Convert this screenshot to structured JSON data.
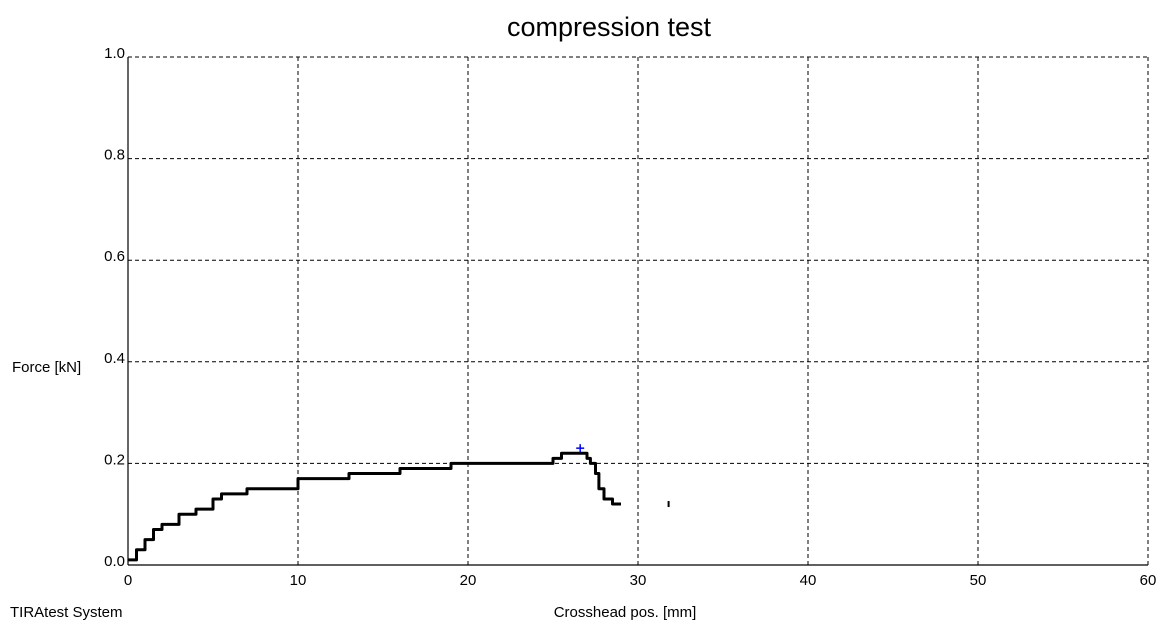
{
  "footer": {
    "system_label": "TIRAtest System"
  },
  "colors": {
    "series": "#000000",
    "marker": "#0000ff",
    "grid": "#000000"
  },
  "chart_data": {
    "type": "line",
    "title": "compression test",
    "xlabel": "Crosshead pos. [mm]",
    "ylabel": "Force [kN]",
    "xlim": [
      0,
      60
    ],
    "ylim": [
      0.0,
      1.0
    ],
    "xticks": [
      0,
      10,
      20,
      30,
      40,
      50,
      60
    ],
    "yticks": [
      0.0,
      0.2,
      0.4,
      0.6,
      0.8,
      1.0
    ],
    "xtick_labels": [
      "0",
      "10",
      "20",
      "30",
      "40",
      "50",
      "60"
    ],
    "ytick_labels": [
      "0.0",
      "0.2",
      "0.4",
      "0.6",
      "0.8",
      "1.0"
    ],
    "grid": true,
    "grid_style": "dashed",
    "series": [
      {
        "x": [
          0,
          0.5,
          1,
          1.5,
          2,
          3,
          4,
          5,
          5.5,
          6,
          7,
          8,
          9,
          10,
          11,
          12,
          13,
          14,
          15,
          16,
          17,
          18,
          19,
          20,
          21,
          22,
          23,
          24,
          25,
          25.5,
          26,
          26.5,
          27,
          27.2,
          27.5,
          27.7,
          28,
          28.5,
          29
        ],
        "y": [
          0.01,
          0.03,
          0.05,
          0.07,
          0.08,
          0.1,
          0.11,
          0.13,
          0.14,
          0.14,
          0.15,
          0.15,
          0.15,
          0.17,
          0.17,
          0.17,
          0.18,
          0.18,
          0.18,
          0.19,
          0.19,
          0.19,
          0.2,
          0.2,
          0.2,
          0.2,
          0.2,
          0.2,
          0.21,
          0.22,
          0.22,
          0.22,
          0.21,
          0.2,
          0.18,
          0.15,
          0.13,
          0.12,
          0.12
        ]
      }
    ],
    "isolated_points": [
      {
        "x": 31.8,
        "y": 0.12
      }
    ],
    "max_marker": {
      "x": 26.6,
      "y": 0.23
    }
  }
}
